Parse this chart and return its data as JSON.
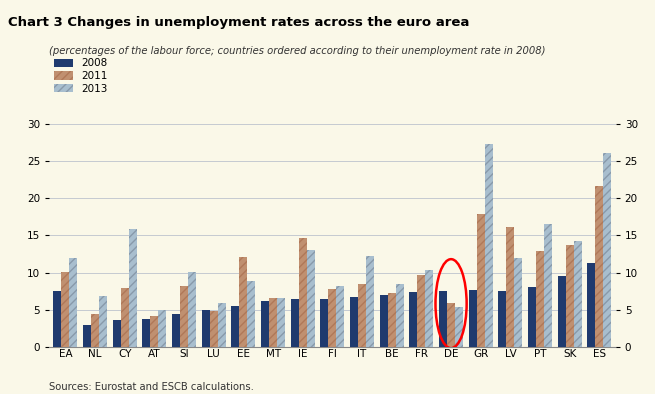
{
  "title": "Chart 3 Changes in unemployment rates across the euro area",
  "subtitle": "(percentages of the labour force; countries ordered according to their unemployment rate in 2008)",
  "categories": [
    "EA",
    "NL",
    "CY",
    "AT",
    "SI",
    "LU",
    "EE",
    "MT",
    "IE",
    "FI",
    "IT",
    "BE",
    "FR",
    "DE",
    "GR",
    "LV",
    "PT",
    "SK",
    "ES"
  ],
  "series_2008": [
    7.5,
    2.9,
    3.6,
    3.8,
    4.4,
    4.9,
    5.5,
    6.1,
    6.4,
    6.4,
    6.7,
    7.0,
    7.4,
    7.5,
    7.6,
    7.5,
    8.0,
    9.5,
    11.3
  ],
  "series_2011": [
    10.1,
    4.4,
    7.9,
    4.1,
    8.2,
    4.8,
    12.1,
    6.5,
    14.7,
    7.8,
    8.4,
    7.2,
    9.6,
    5.9,
    17.9,
    16.2,
    12.9,
    13.7,
    21.7
  ],
  "series_2013": [
    11.9,
    6.8,
    15.9,
    4.9,
    10.1,
    5.9,
    8.8,
    6.5,
    13.1,
    8.2,
    12.2,
    8.5,
    10.3,
    5.3,
    27.3,
    11.9,
    16.5,
    14.2,
    26.1
  ],
  "color_2008": "#1f3a6e",
  "color_2011": "#c09070",
  "color_2013": "#a8bece",
  "bg_color": "#faf8e8",
  "title_bg_color": "#c8c8b0",
  "ylim": [
    0,
    30
  ],
  "yticks": [
    0,
    5,
    10,
    15,
    20,
    25,
    30
  ],
  "circle_index": 13,
  "sources": "Sources: Eurostat and ESCB calculations."
}
